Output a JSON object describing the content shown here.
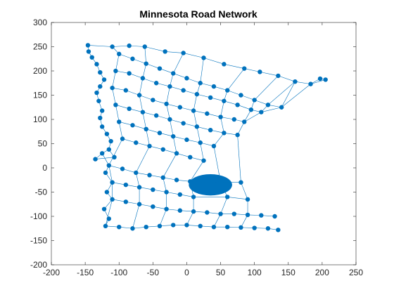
{
  "chart_data": {
    "type": "graph",
    "title": "Minnesota Road Network",
    "xlabel": "",
    "ylabel": "",
    "xlim": [
      -200,
      250
    ],
    "ylim": [
      -200,
      300
    ],
    "x_ticks": [
      -200,
      -150,
      -100,
      -50,
      0,
      50,
      100,
      150,
      200,
      250
    ],
    "y_ticks": [
      -200,
      -150,
      -100,
      -50,
      0,
      50,
      100,
      150,
      200,
      250,
      300
    ],
    "grid": false,
    "color": "#0072BD",
    "nodes": [
      [
        -146,
        253
      ],
      [
        -145,
        240
      ],
      [
        -140,
        228
      ],
      [
        -133,
        214
      ],
      [
        -128,
        197
      ],
      [
        -122,
        182
      ],
      [
        -128,
        168
      ],
      [
        -133,
        155
      ],
      [
        -130,
        138
      ],
      [
        -125,
        118
      ],
      [
        -128,
        103
      ],
      [
        -125,
        85
      ],
      [
        -118,
        70
      ],
      [
        -112,
        55
      ],
      [
        -115,
        38
      ],
      [
        -107,
        22
      ],
      [
        -135,
        18
      ],
      [
        -110,
        250
      ],
      [
        -85,
        252
      ],
      [
        -62,
        250
      ],
      [
        -32,
        240
      ],
      [
        -5,
        237
      ],
      [
        25,
        227
      ],
      [
        55,
        214
      ],
      [
        85,
        205
      ],
      [
        108,
        198
      ],
      [
        135,
        190
      ],
      [
        160,
        178
      ],
      [
        183,
        173
      ],
      [
        197,
        184
      ],
      [
        205,
        182
      ],
      [
        -100,
        235
      ],
      [
        -80,
        225
      ],
      [
        -60,
        215
      ],
      [
        -40,
        205
      ],
      [
        -20,
        195
      ],
      [
        0,
        185
      ],
      [
        20,
        175
      ],
      [
        40,
        168
      ],
      [
        60,
        160
      ],
      [
        80,
        150
      ],
      [
        100,
        140
      ],
      [
        120,
        130
      ],
      [
        140,
        125
      ],
      [
        -105,
        200
      ],
      [
        -85,
        195
      ],
      [
        -65,
        185
      ],
      [
        -45,
        175
      ],
      [
        -25,
        168
      ],
      [
        -5,
        160
      ],
      [
        15,
        152
      ],
      [
        35,
        145
      ],
      [
        55,
        138
      ],
      [
        75,
        130
      ],
      [
        95,
        120
      ],
      [
        110,
        115
      ],
      [
        -110,
        165
      ],
      [
        -90,
        160
      ],
      [
        -70,
        150
      ],
      [
        -50,
        140
      ],
      [
        -30,
        132
      ],
      [
        -10,
        125
      ],
      [
        10,
        118
      ],
      [
        30,
        112
      ],
      [
        50,
        105
      ],
      [
        70,
        100
      ],
      [
        85,
        95
      ],
      [
        -105,
        130
      ],
      [
        -85,
        122
      ],
      [
        -65,
        115
      ],
      [
        -45,
        108
      ],
      [
        -25,
        100
      ],
      [
        -5,
        92
      ],
      [
        15,
        85
      ],
      [
        35,
        78
      ],
      [
        55,
        72
      ],
      [
        75,
        68
      ],
      [
        -100,
        95
      ],
      [
        -80,
        88
      ],
      [
        -60,
        80
      ],
      [
        -40,
        72
      ],
      [
        -20,
        65
      ],
      [
        0,
        58
      ],
      [
        20,
        52
      ],
      [
        40,
        45
      ],
      [
        -95,
        60
      ],
      [
        -75,
        52
      ],
      [
        -55,
        45
      ],
      [
        -35,
        38
      ],
      [
        -15,
        30
      ],
      [
        5,
        22
      ],
      [
        25,
        15
      ],
      [
        -115,
        5
      ],
      [
        -95,
        -2
      ],
      [
        -75,
        -10
      ],
      [
        -55,
        -15
      ],
      [
        -35,
        -20
      ],
      [
        -15,
        -25
      ],
      [
        5,
        -28
      ],
      [
        50,
        -30
      ],
      [
        80,
        -30
      ],
      [
        -110,
        -30
      ],
      [
        -90,
        -35
      ],
      [
        -70,
        -40
      ],
      [
        -50,
        -45
      ],
      [
        -30,
        -50
      ],
      [
        -10,
        -55
      ],
      [
        10,
        -60
      ],
      [
        60,
        -60
      ],
      [
        90,
        -65
      ],
      [
        -110,
        -65
      ],
      [
        -90,
        -70
      ],
      [
        -70,
        -75
      ],
      [
        -50,
        -80
      ],
      [
        -30,
        -85
      ],
      [
        -10,
        -88
      ],
      [
        10,
        -90
      ],
      [
        30,
        -92
      ],
      [
        50,
        -95
      ],
      [
        70,
        -95
      ],
      [
        90,
        -97
      ],
      [
        110,
        -98
      ],
      [
        130,
        -100
      ],
      [
        -120,
        -120
      ],
      [
        -100,
        -122
      ],
      [
        -80,
        -125
      ],
      [
        -60,
        -122
      ],
      [
        -40,
        -120
      ],
      [
        -20,
        -118
      ],
      [
        0,
        -118
      ],
      [
        20,
        -120
      ],
      [
        40,
        -122
      ],
      [
        60,
        -122
      ],
      [
        80,
        -123
      ],
      [
        100,
        -124
      ],
      [
        120,
        -125
      ],
      [
        135,
        -128
      ],
      [
        -125,
        30
      ],
      [
        -120,
        -10
      ],
      [
        -118,
        -50
      ],
      [
        -122,
        -85
      ],
      [
        -115,
        -105
      ]
    ],
    "edges": [
      [
        0,
        1
      ],
      [
        1,
        2
      ],
      [
        2,
        3
      ],
      [
        3,
        4
      ],
      [
        4,
        5
      ],
      [
        5,
        6
      ],
      [
        6,
        7
      ],
      [
        7,
        8
      ],
      [
        8,
        9
      ],
      [
        9,
        10
      ],
      [
        10,
        11
      ],
      [
        11,
        12
      ],
      [
        12,
        13
      ],
      [
        13,
        14
      ],
      [
        14,
        15
      ],
      [
        15,
        16
      ],
      [
        0,
        17
      ],
      [
        17,
        18
      ],
      [
        18,
        19
      ],
      [
        19,
        20
      ],
      [
        20,
        21
      ],
      [
        21,
        22
      ],
      [
        22,
        23
      ],
      [
        23,
        24
      ],
      [
        24,
        25
      ],
      [
        25,
        26
      ],
      [
        26,
        27
      ],
      [
        27,
        28
      ],
      [
        28,
        29
      ],
      [
        29,
        30
      ],
      [
        31,
        32
      ],
      [
        32,
        33
      ],
      [
        33,
        34
      ],
      [
        34,
        35
      ],
      [
        35,
        36
      ],
      [
        36,
        37
      ],
      [
        37,
        38
      ],
      [
        38,
        39
      ],
      [
        39,
        40
      ],
      [
        40,
        41
      ],
      [
        41,
        42
      ],
      [
        42,
        43
      ],
      [
        44,
        45
      ],
      [
        45,
        46
      ],
      [
        46,
        47
      ],
      [
        47,
        48
      ],
      [
        48,
        49
      ],
      [
        49,
        50
      ],
      [
        50,
        51
      ],
      [
        51,
        52
      ],
      [
        52,
        53
      ],
      [
        53,
        54
      ],
      [
        54,
        55
      ],
      [
        56,
        57
      ],
      [
        57,
        58
      ],
      [
        58,
        59
      ],
      [
        59,
        60
      ],
      [
        60,
        61
      ],
      [
        61,
        62
      ],
      [
        62,
        63
      ],
      [
        63,
        64
      ],
      [
        64,
        65
      ],
      [
        65,
        66
      ],
      [
        67,
        68
      ],
      [
        68,
        69
      ],
      [
        69,
        70
      ],
      [
        70,
        71
      ],
      [
        71,
        72
      ],
      [
        72,
        73
      ],
      [
        73,
        74
      ],
      [
        74,
        75
      ],
      [
        75,
        76
      ],
      [
        77,
        78
      ],
      [
        78,
        79
      ],
      [
        79,
        80
      ],
      [
        80,
        81
      ],
      [
        81,
        82
      ],
      [
        82,
        83
      ],
      [
        83,
        84
      ],
      [
        85,
        86
      ],
      [
        86,
        87
      ],
      [
        87,
        88
      ],
      [
        88,
        89
      ],
      [
        89,
        90
      ],
      [
        90,
        91
      ],
      [
        92,
        93
      ],
      [
        93,
        94
      ],
      [
        94,
        95
      ],
      [
        95,
        96
      ],
      [
        96,
        97
      ],
      [
        97,
        98
      ],
      [
        98,
        99
      ],
      [
        99,
        100
      ],
      [
        101,
        102
      ],
      [
        102,
        103
      ],
      [
        103,
        104
      ],
      [
        104,
        105
      ],
      [
        105,
        106
      ],
      [
        106,
        107
      ],
      [
        107,
        108
      ],
      [
        108,
        109
      ],
      [
        110,
        111
      ],
      [
        111,
        112
      ],
      [
        112,
        113
      ],
      [
        113,
        114
      ],
      [
        114,
        115
      ],
      [
        115,
        116
      ],
      [
        116,
        117
      ],
      [
        117,
        118
      ],
      [
        118,
        119
      ],
      [
        119,
        120
      ],
      [
        120,
        121
      ],
      [
        121,
        122
      ],
      [
        123,
        124
      ],
      [
        124,
        125
      ],
      [
        125,
        126
      ],
      [
        126,
        127
      ],
      [
        127,
        128
      ],
      [
        128,
        129
      ],
      [
        129,
        130
      ],
      [
        130,
        131
      ],
      [
        131,
        132
      ],
      [
        132,
        133
      ],
      [
        133,
        134
      ],
      [
        134,
        135
      ],
      [
        135,
        136
      ],
      [
        17,
        31
      ],
      [
        31,
        44
      ],
      [
        44,
        56
      ],
      [
        56,
        67
      ],
      [
        67,
        77
      ],
      [
        77,
        85
      ],
      [
        85,
        92
      ],
      [
        92,
        101
      ],
      [
        101,
        110
      ],
      [
        110,
        123
      ],
      [
        19,
        33
      ],
      [
        33,
        46
      ],
      [
        46,
        58
      ],
      [
        58,
        69
      ],
      [
        69,
        79
      ],
      [
        79,
        87
      ],
      [
        87,
        94
      ],
      [
        94,
        103
      ],
      [
        103,
        112
      ],
      [
        112,
        125
      ],
      [
        21,
        35
      ],
      [
        35,
        48
      ],
      [
        48,
        60
      ],
      [
        60,
        71
      ],
      [
        71,
        81
      ],
      [
        81,
        89
      ],
      [
        89,
        96
      ],
      [
        96,
        105
      ],
      [
        105,
        114
      ],
      [
        114,
        127
      ],
      [
        22,
        37
      ],
      [
        37,
        50
      ],
      [
        50,
        62
      ],
      [
        62,
        73
      ],
      [
        73,
        83
      ],
      [
        83,
        91
      ],
      [
        91,
        98
      ],
      [
        98,
        107
      ],
      [
        107,
        116
      ],
      [
        116,
        129
      ],
      [
        24,
        39
      ],
      [
        39,
        52
      ],
      [
        52,
        64
      ],
      [
        64,
        75
      ],
      [
        75,
        84
      ],
      [
        84,
        99
      ],
      [
        99,
        108
      ],
      [
        108,
        118
      ],
      [
        118,
        131
      ],
      [
        26,
        41
      ],
      [
        41,
        54
      ],
      [
        54,
        66
      ],
      [
        66,
        76
      ],
      [
        76,
        100
      ],
      [
        100,
        109
      ],
      [
        109,
        120
      ],
      [
        120,
        133
      ],
      [
        27,
        42
      ],
      [
        42,
        55
      ],
      [
        55,
        66
      ],
      [
        28,
        43
      ],
      [
        43,
        55
      ],
      [
        43,
        27
      ],
      [
        30,
        28
      ],
      [
        137,
        14
      ],
      [
        137,
        92
      ],
      [
        138,
        92
      ],
      [
        138,
        101
      ],
      [
        139,
        101
      ],
      [
        139,
        110
      ],
      [
        140,
        110
      ],
      [
        140,
        141
      ],
      [
        141,
        123
      ],
      [
        16,
        137
      ]
    ],
    "metro_center": [
      35,
      -35
    ],
    "metro_radii": [
      32,
      22
    ]
  }
}
